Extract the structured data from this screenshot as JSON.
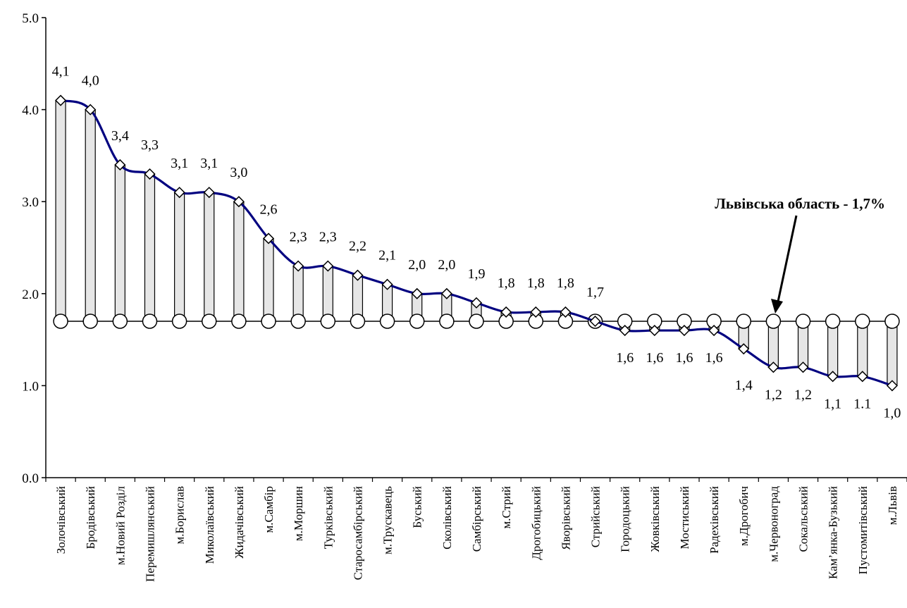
{
  "chart_data": {
    "type": "line",
    "title": "",
    "xlabel": "",
    "ylabel": "",
    "ylim": [
      0,
      5
    ],
    "yticks": [
      "0.0",
      "1.0",
      "2.0",
      "3.0",
      "4.0",
      "5.0"
    ],
    "grid": false,
    "categories": [
      "Золочівський",
      "Бродівський",
      "м.Новий Розділ",
      "Перемишлянський",
      "м.Борислав",
      "Миколаївський",
      "Жидачівський",
      "м.Самбір",
      "м.Моршин",
      "Турківський",
      "Старосамбірський",
      "м.Трускавець",
      "Буський",
      "Сколівський",
      "Самбірський",
      "м.Стрий",
      "Дрогобицький",
      "Яворівський",
      "Стрийський",
      "Городоцький",
      "Жовківський",
      "Мостиський",
      "Радехівський",
      "м.Дрогобич",
      "м.Червоноград",
      "Сокальський",
      "Кам’янка-Бузький",
      "Пустомитівський",
      "м.Львів"
    ],
    "series": [
      {
        "values": [
          4.1,
          4.0,
          3.4,
          3.3,
          3.1,
          3.1,
          3.0,
          2.6,
          2.3,
          2.3,
          2.2,
          2.1,
          2.0,
          2.0,
          1.9,
          1.8,
          1.8,
          1.8,
          1.7,
          1.6,
          1.6,
          1.6,
          1.6,
          1.4,
          1.2,
          1.2,
          1.1,
          1.1,
          1.0
        ],
        "labels": [
          "4,1",
          "4,0",
          "3,4",
          "3,3",
          "3,1",
          "3,1",
          "3,0",
          "2,6",
          "2,3",
          "2,3",
          "2,2",
          "2,1",
          "2,0",
          "2,0",
          "1,9",
          "1,8",
          "1,8",
          "1,8",
          "1,7",
          "1,6",
          "1,6",
          "1,6",
          "1,6",
          "1,4",
          "1,2",
          "1,2",
          "1,1",
          "1.1",
          "1,0"
        ],
        "color": "#000080"
      },
      {
        "values": [
          1.7,
          1.7,
          1.7,
          1.7,
          1.7,
          1.7,
          1.7,
          1.7,
          1.7,
          1.7,
          1.7,
          1.7,
          1.7,
          1.7,
          1.7,
          1.7,
          1.7,
          1.7,
          1.7,
          1.7,
          1.7,
          1.7,
          1.7,
          1.7,
          1.7,
          1.7,
          1.7,
          1.7,
          1.7
        ],
        "color": "#000000"
      }
    ],
    "annotation": {
      "text": "Львівська область - 1,7%",
      "category": "м.Червоноград"
    },
    "colors": {
      "drop_fill": "#e6e6e6",
      "line": "#000080",
      "axis": "#000000"
    }
  }
}
